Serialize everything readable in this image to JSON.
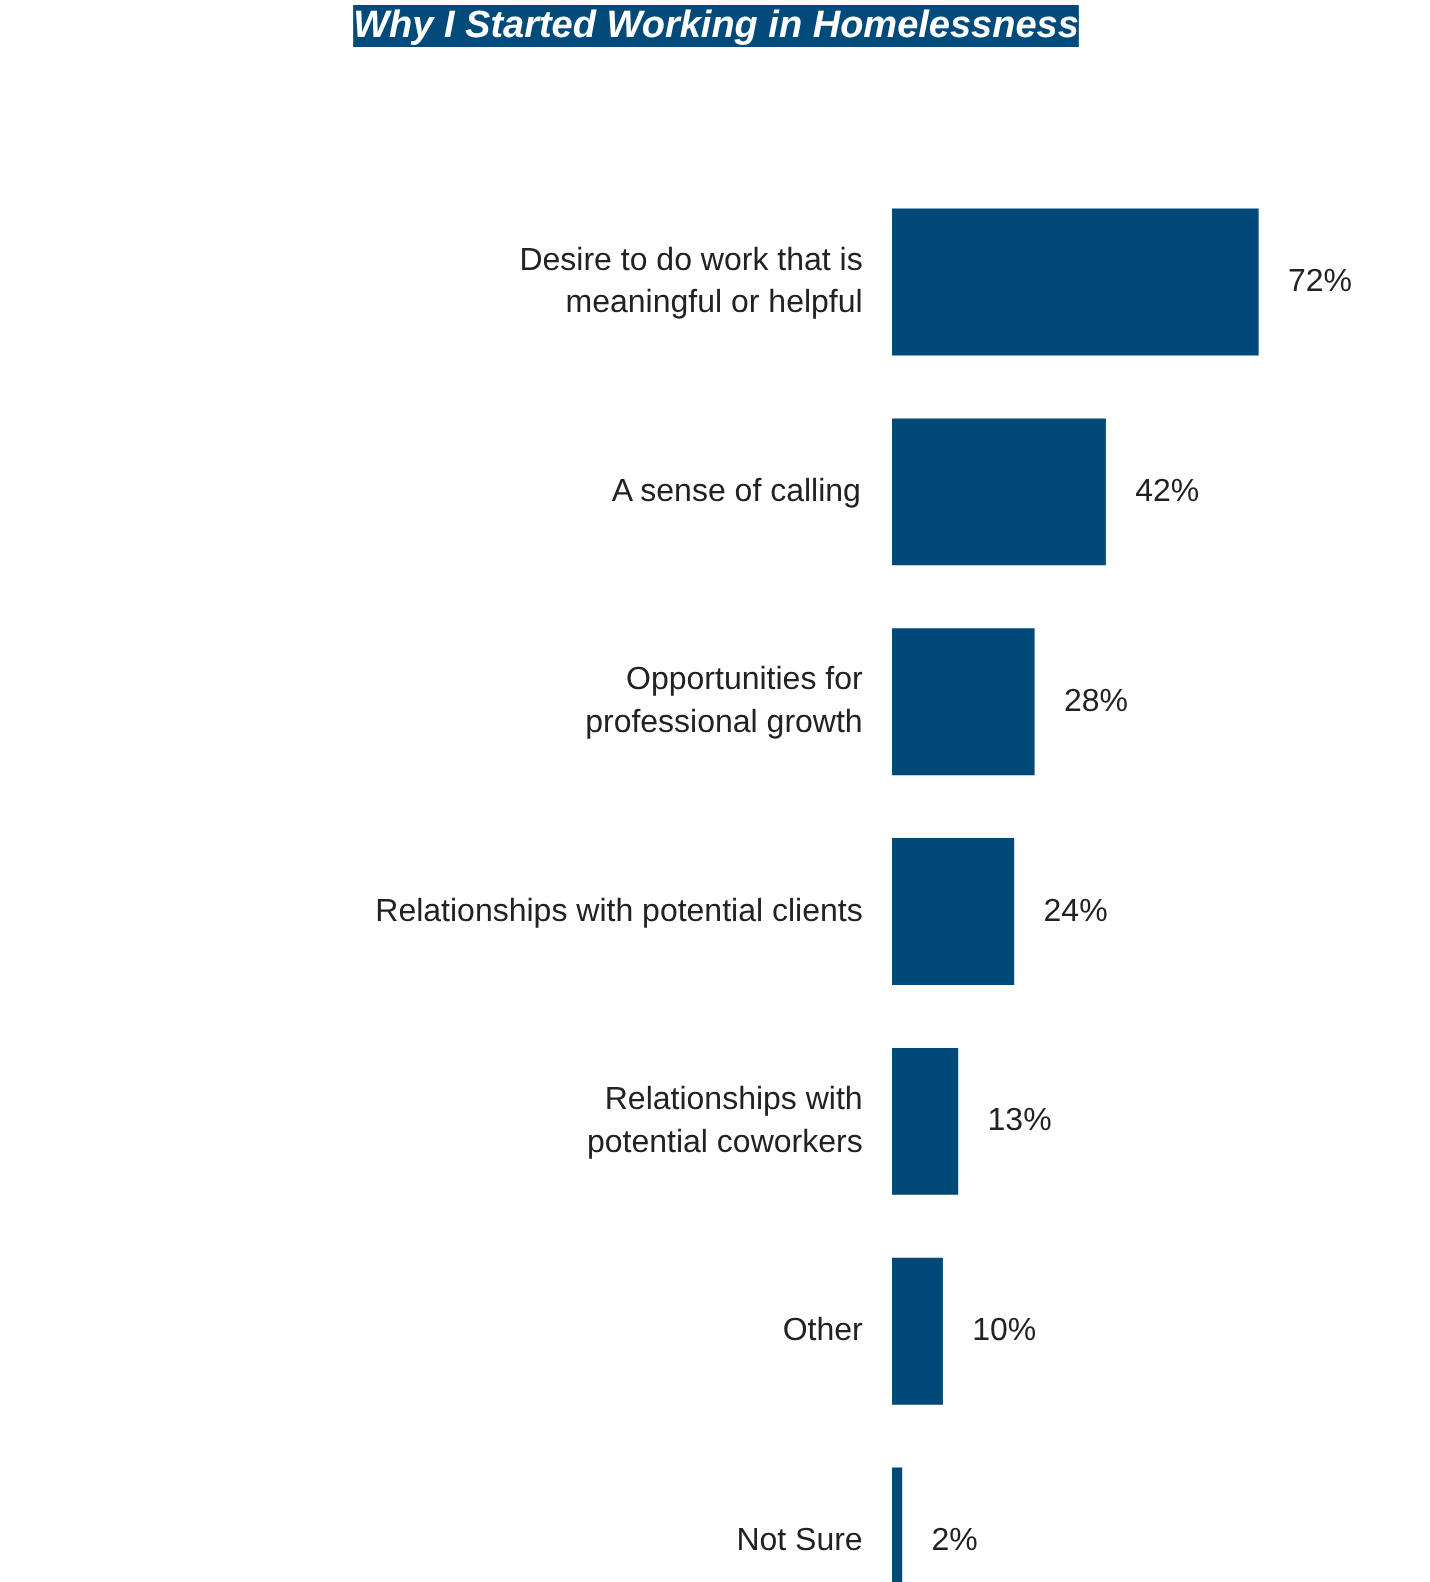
{
  "chart_data": {
    "type": "bar",
    "orientation": "horizontal",
    "title": "Why I Started Working in Homelessness",
    "categories": [
      "Desire to do work that is\nmeaningful or helpful",
      "A sense of calling",
      "Opportunities for\nprofessional growth",
      "Relationships with potential clients",
      "Relationships with\npotential coworkers",
      "Other",
      "Not Sure"
    ],
    "values": [
      72,
      42,
      28,
      24,
      13,
      10,
      2
    ],
    "value_labels": [
      "72%",
      "42%",
      "28%",
      "24%",
      "13%",
      "10%",
      "2%"
    ],
    "color": "#004a7a"
  }
}
